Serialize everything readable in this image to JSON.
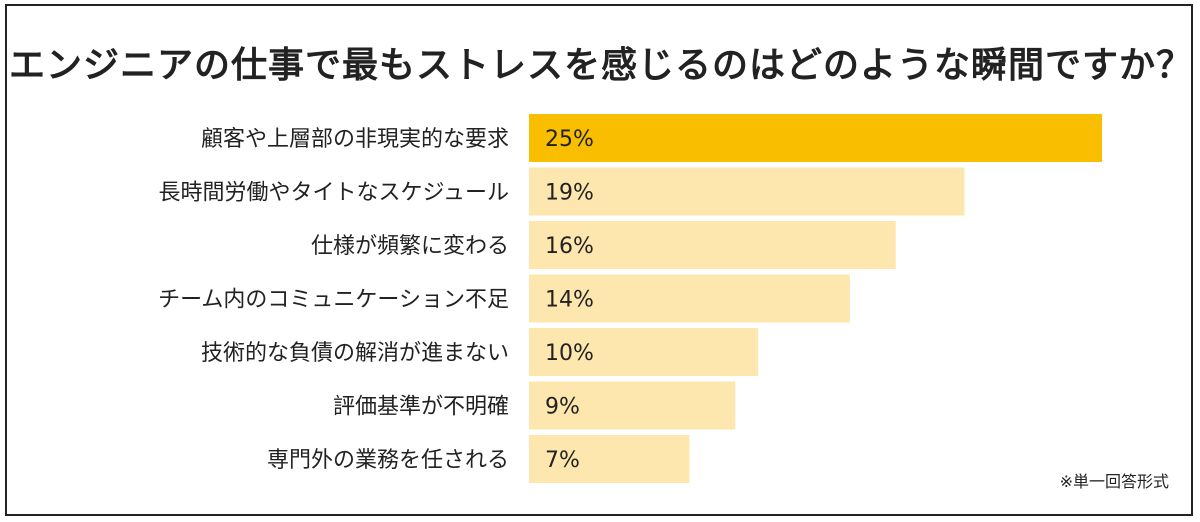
{
  "chart_data": {
    "type": "bar",
    "orientation": "horizontal",
    "title": "エンジニアの仕事で最もストレスを感じるのはどのような瞬間ですか？",
    "categories": [
      "顧客や上層部の非現実的な要求",
      "長時間労働やタイトなスケジュール",
      "仕様が頻繁に変わる",
      "チーム内のコミュニケーション不足",
      "技術的な負債の解消が進まない",
      "評価基準が不明確",
      "専門外の業務を任される"
    ],
    "values": [
      25,
      19,
      16,
      14,
      10,
      9,
      7
    ],
    "value_labels": [
      "25%",
      "19%",
      "16%",
      "14%",
      "10%",
      "9%",
      "7%"
    ],
    "unit": "%",
    "xlim": [
      0,
      25
    ],
    "grid": false,
    "legend": "none",
    "note": "※単一回答形式",
    "colors": {
      "highlight": "#F9BE00",
      "bar": "#FDE7AE",
      "text": "#222222",
      "border": "#222222"
    }
  }
}
